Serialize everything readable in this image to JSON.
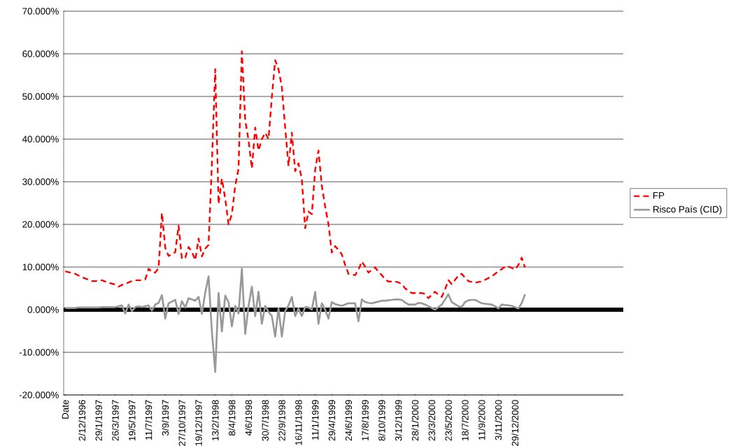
{
  "chart_data": {
    "type": "line",
    "categories": [
      "Date",
      null,
      null,
      null,
      null,
      "2/12/1996",
      null,
      null,
      null,
      null,
      "29/1/1997",
      null,
      null,
      null,
      null,
      "26/3/1997",
      null,
      null,
      null,
      null,
      "19/5/1997",
      null,
      null,
      null,
      null,
      "11/7/1997",
      null,
      null,
      null,
      null,
      "3/9/1997",
      null,
      null,
      null,
      null,
      "27/10/1997",
      null,
      null,
      null,
      null,
      "19/12/1997",
      null,
      null,
      null,
      null,
      "13/2/1998",
      null,
      null,
      null,
      null,
      "8/4/1998",
      null,
      null,
      null,
      null,
      "4/6/1998",
      null,
      null,
      null,
      null,
      "30/7/1998",
      null,
      null,
      null,
      null,
      "22/9/1998",
      null,
      null,
      null,
      null,
      "16/11/1998",
      null,
      null,
      null,
      null,
      "11/1/1999",
      null,
      null,
      null,
      null,
      "29/4/1999",
      null,
      null,
      null,
      null,
      "24/6/1999",
      null,
      null,
      null,
      null,
      "17/8/1999",
      null,
      null,
      null,
      null,
      "8/10/1999",
      null,
      null,
      null,
      null,
      "3/12/1999",
      null,
      null,
      null,
      null,
      "28/1/2000",
      null,
      null,
      null,
      null,
      "23/3/2000",
      null,
      null,
      null,
      null,
      "23/5/2000",
      null,
      null,
      null,
      null,
      "18/7/2000",
      null,
      null,
      null,
      null,
      "11/9/2000",
      null,
      null,
      null,
      null,
      "3/11/2000",
      null,
      null,
      null,
      null,
      "29/12/2000",
      null,
      null,
      null,
      null,
      null,
      null,
      null,
      null,
      null,
      null,
      null,
      null,
      null,
      null,
      null,
      null,
      null,
      null,
      null,
      null,
      null,
      null,
      null,
      null,
      null,
      null,
      null,
      null,
      null,
      null,
      null,
      null
    ],
    "ylim": [
      -20,
      70
    ],
    "yticks": [
      {
        "value": 70,
        "label": "70.000%"
      },
      {
        "value": 60,
        "label": "60.000%"
      },
      {
        "value": 50,
        "label": "50.000%"
      },
      {
        "value": 40,
        "label": "40.000%"
      },
      {
        "value": 30,
        "label": "30.000%"
      },
      {
        "value": 20,
        "label": "20.000%"
      },
      {
        "value": 10,
        "label": "10.000%"
      },
      {
        "value": 0,
        "label": "0.000%"
      },
      {
        "value": -10,
        "label": "-10.000%"
      },
      {
        "value": -20,
        "label": "-20.000%"
      }
    ],
    "grid": "y",
    "legend": "right",
    "ref_lines": [
      {
        "axis": "y",
        "value": 0,
        "color": "#000000"
      }
    ],
    "series": [
      {
        "name": "FP",
        "color": "#ff0000",
        "line_style": "dashed",
        "values": [
          9.0,
          8.8,
          8.6,
          8.4,
          8.0,
          7.6,
          7.3,
          7.0,
          6.7,
          6.7,
          6.8,
          6.9,
          6.6,
          6.3,
          6.1,
          5.9,
          5.4,
          5.8,
          6.1,
          6.4,
          6.7,
          6.9,
          6.9,
          6.9,
          7.1,
          9.6,
          8.8,
          8.7,
          9.8,
          22.7,
          14.5,
          12.6,
          13.0,
          13.5,
          19.7,
          11.9,
          12.2,
          14.7,
          13.6,
          11.6,
          16.7,
          12.5,
          14.3,
          15.2,
          34.3,
          56.4,
          24.8,
          30.7,
          26.0,
          20.0,
          22.4,
          29.0,
          33.1,
          60.6,
          44.5,
          39.7,
          33.1,
          42.7,
          37.3,
          40.0,
          41.5,
          40.0,
          49.9,
          58.5,
          56.4,
          52.2,
          42.7,
          33.7,
          41.5,
          32.5,
          34.3,
          30.7,
          19.1,
          23.0,
          22.4,
          32.8,
          37.3,
          29.0,
          24.2,
          20.0,
          13.4,
          14.9,
          14.0,
          13.0,
          10.5,
          8.4,
          8.2,
          8.1,
          9.4,
          11.3,
          10.1,
          8.7,
          9.3,
          9.9,
          8.9,
          8.1,
          7.1,
          6.6,
          6.6,
          6.6,
          6.4,
          6.0,
          5.0,
          4.4,
          3.9,
          3.9,
          3.9,
          3.9,
          3.7,
          2.7,
          3.5,
          4.2,
          3.5,
          3.0,
          4.8,
          6.9,
          6.0,
          7.0,
          8.0,
          8.4,
          7.5,
          6.7,
          6.5,
          6.3,
          6.5,
          6.6,
          7.0,
          7.4,
          7.8,
          8.4,
          9.0,
          9.5,
          10.1,
          10.1,
          9.8,
          9.4,
          10.5,
          12.2,
          9.9,
          null,
          null,
          null,
          null,
          null,
          null,
          null,
          null,
          null,
          null,
          null,
          null,
          null,
          null,
          null,
          null,
          null,
          null,
          null,
          null,
          null,
          null,
          null,
          null,
          null,
          null,
          null,
          null,
          null
        ]
      },
      {
        "name": "Risco País (CID)",
        "color": "#999999",
        "line_style": "solid",
        "values": [
          0.4,
          0.4,
          0.4,
          0.4,
          0.5,
          0.5,
          0.5,
          0.5,
          0.5,
          0.5,
          0.5,
          0.6,
          0.6,
          0.6,
          0.6,
          0.6,
          0.8,
          1.0,
          -0.9,
          1.2,
          -0.3,
          0.6,
          0.8,
          0.6,
          0.8,
          1.0,
          -0.2,
          1.2,
          1.6,
          3.4,
          -2.1,
          1.5,
          1.9,
          2.3,
          -1.0,
          2.0,
          0.5,
          2.7,
          2.4,
          2.1,
          3.0,
          -1.0,
          4.0,
          7.8,
          -5.1,
          -14.6,
          3.9,
          -5.1,
          3.3,
          1.8,
          -3.9,
          0.9,
          -0.9,
          9.6,
          -5.7,
          0.9,
          5.4,
          -1.5,
          4.2,
          -3.3,
          0.9,
          -0.5,
          -1.5,
          -6.3,
          0.3,
          -6.3,
          -0.3,
          1.0,
          3.0,
          -1.5,
          0.3,
          -1.5,
          0.6,
          0.5,
          0.0,
          4.2,
          -3.3,
          1.5,
          0.0,
          -2.1,
          1.8,
          1.3,
          1.1,
          0.9,
          1.2,
          1.5,
          1.5,
          1.5,
          -2.7,
          2.4,
          1.8,
          1.6,
          1.5,
          1.7,
          1.9,
          2.1,
          2.1,
          2.2,
          2.3,
          2.4,
          2.4,
          2.3,
          1.7,
          1.2,
          1.2,
          1.2,
          1.6,
          1.5,
          1.2,
          0.8,
          0.4,
          0.0,
          0.6,
          1.2,
          2.4,
          3.6,
          1.8,
          1.3,
          0.8,
          0.6,
          1.8,
          2.2,
          2.3,
          2.3,
          1.9,
          1.5,
          1.4,
          1.3,
          1.2,
          0.8,
          0.3,
          1.2,
          1.1,
          1.0,
          0.9,
          0.6,
          0.3,
          1.5,
          3.6,
          null,
          null,
          null,
          null,
          null,
          null,
          null,
          null,
          null,
          null,
          null,
          null,
          null,
          null,
          null,
          null,
          null,
          null,
          null,
          null,
          null,
          null,
          null,
          null,
          null,
          null,
          null,
          null,
          null
        ]
      }
    ]
  }
}
